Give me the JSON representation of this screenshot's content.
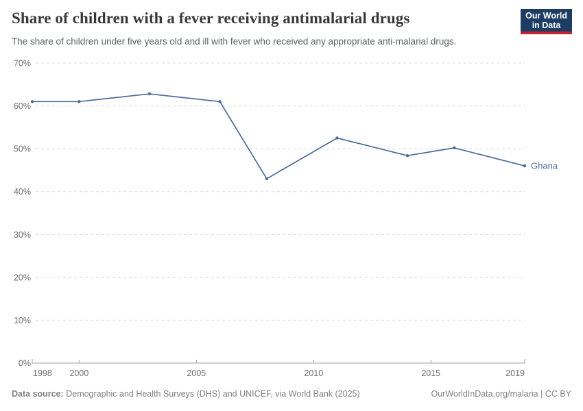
{
  "header": {
    "title": "Share of children with a fever receiving antimalarial drugs",
    "subtitle": "The share of children under five years old and ill with fever who received any appropriate anti-malarial drugs.",
    "logo": {
      "line1": "Our World",
      "line2": "in Data",
      "bg_color": "#1d3d63",
      "bar_color": "#c5202e"
    }
  },
  "chart_data": {
    "type": "line",
    "title": "Share of children with a fever receiving antimalarial drugs",
    "x": [
      1998,
      2000,
      2003,
      2006,
      2008,
      2011,
      2014,
      2016,
      2019
    ],
    "series": [
      {
        "name": "Ghana",
        "color": "#4c6a9c",
        "values": [
          61,
          61,
          62.8,
          61,
          43,
          52.5,
          48.4,
          50.2,
          46
        ]
      }
    ],
    "xlabel": "",
    "ylabel": "",
    "xlim": [
      1998,
      2019
    ],
    "ylim": [
      0,
      70
    ],
    "yticks": [
      0,
      10,
      20,
      30,
      40,
      50,
      60,
      70
    ],
    "ytick_suffix": "%",
    "xticks": [
      1998,
      2000,
      2005,
      2010,
      2015,
      2019
    ],
    "grid": "horizontal-dashed",
    "legend": "end-of-line-label",
    "end_label": "Ghana"
  },
  "style": {
    "grid_color": "#dadada",
    "axis_color": "#9e9e9e",
    "tick_label_color": "#6e6e6e"
  },
  "footer": {
    "source_label": "Data source:",
    "source_value": "Demographic and Health Surveys (DHS) and UNICEF, via World Bank (2025)",
    "credit": "OurWorldInData.org/malaria | CC BY"
  }
}
